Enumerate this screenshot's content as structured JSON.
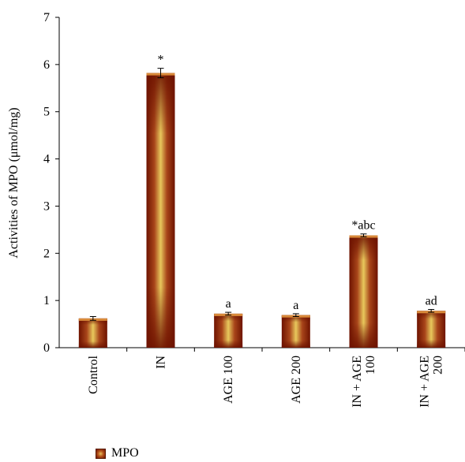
{
  "chart_data": {
    "type": "bar",
    "categories": [
      "Control",
      "IN",
      "AGE 100",
      "AGE 200",
      "IN + AGE 100",
      "IN + AGE 200"
    ],
    "category_lines": [
      [
        "Control"
      ],
      [
        "IN"
      ],
      [
        "AGE 100"
      ],
      [
        "AGE 200"
      ],
      [
        "IN + AGE",
        "100"
      ],
      [
        "IN + AGE",
        "200"
      ]
    ],
    "series": [
      {
        "name": "MPO",
        "values": [
          0.62,
          5.82,
          0.72,
          0.69,
          2.38,
          0.78
        ]
      }
    ],
    "error": [
      0.04,
      0.1,
      0.03,
      0.03,
      0.03,
      0.03
    ],
    "annotations": [
      "",
      "*",
      "a",
      "a",
      "*abc",
      "ad"
    ],
    "ylabel": "Activities of MPO (μmol/mg)",
    "xlabel": "",
    "ylim": [
      0,
      7
    ],
    "yticks": [
      "0",
      "1",
      "2",
      "3",
      "4",
      "5",
      "6",
      "7"
    ],
    "grid": false,
    "legend_position": "bottom-left",
    "colors": {
      "bar_center": "#e8c85c",
      "bar_mid": "#b5531c",
      "bar_edge": "#6e1300",
      "bar_top": "#d98a3a"
    }
  }
}
